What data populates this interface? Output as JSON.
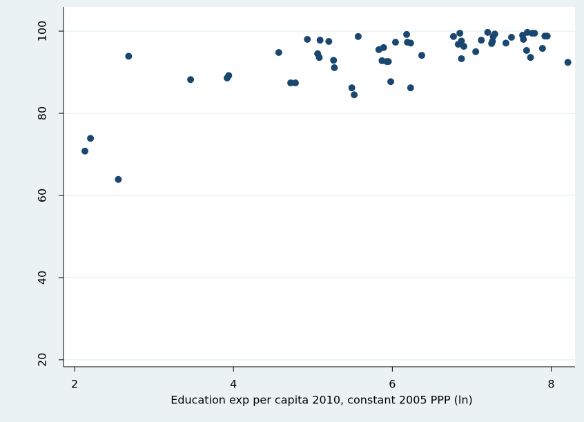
{
  "chart_data": {
    "type": "scatter",
    "x_label": "Education exp per capita 2010, constant 2005 PPP (ln)",
    "x": [
      2.13,
      2.2,
      2.55,
      2.68,
      3.46,
      3.92,
      3.94,
      4.57,
      4.72,
      4.78,
      4.93,
      5.06,
      5.08,
      5.09,
      5.2,
      5.26,
      5.27,
      5.49,
      5.52,
      5.57,
      5.83,
      5.89,
      5.87,
      5.93,
      5.95,
      5.98,
      6.04,
      6.18,
      6.19,
      6.23,
      6.23,
      6.37,
      6.77,
      6.85,
      6.83,
      6.87,
      6.9,
      6.87,
      7.05,
      7.12,
      7.2,
      7.26,
      7.27,
      7.29,
      7.25,
      7.43,
      7.5,
      7.64,
      7.65,
      7.7,
      7.76,
      7.79,
      7.69,
      7.74,
      7.89,
      7.92,
      7.95,
      8.21
    ],
    "values": [
      70.8,
      73.9,
      63.9,
      93.9,
      88.2,
      88.6,
      89.2,
      94.8,
      87.4,
      87.4,
      98.0,
      94.5,
      93.6,
      97.8,
      97.5,
      92.9,
      91.1,
      86.2,
      84.5,
      98.7,
      95.5,
      96.0,
      92.8,
      92.6,
      92.6,
      87.7,
      97.3,
      99.2,
      97.3,
      97.1,
      86.2,
      94.1,
      98.7,
      99.5,
      96.8,
      97.6,
      96.3,
      93.3,
      95.0,
      97.8,
      99.7,
      97.5,
      98.7,
      99.3,
      97.0,
      97.1,
      98.5,
      99.0,
      98.0,
      99.7,
      99.5,
      99.5,
      95.3,
      93.6,
      95.8,
      98.8,
      98.8,
      92.4
    ],
    "color": "#1a476f",
    "xlim": [
      1.86,
      8.3
    ],
    "xticks": [
      2,
      4,
      6,
      8
    ],
    "ylim": [
      18.3,
      105.9
    ],
    "yticks": [
      20,
      40,
      60,
      80,
      100
    ],
    "grid": true
  }
}
